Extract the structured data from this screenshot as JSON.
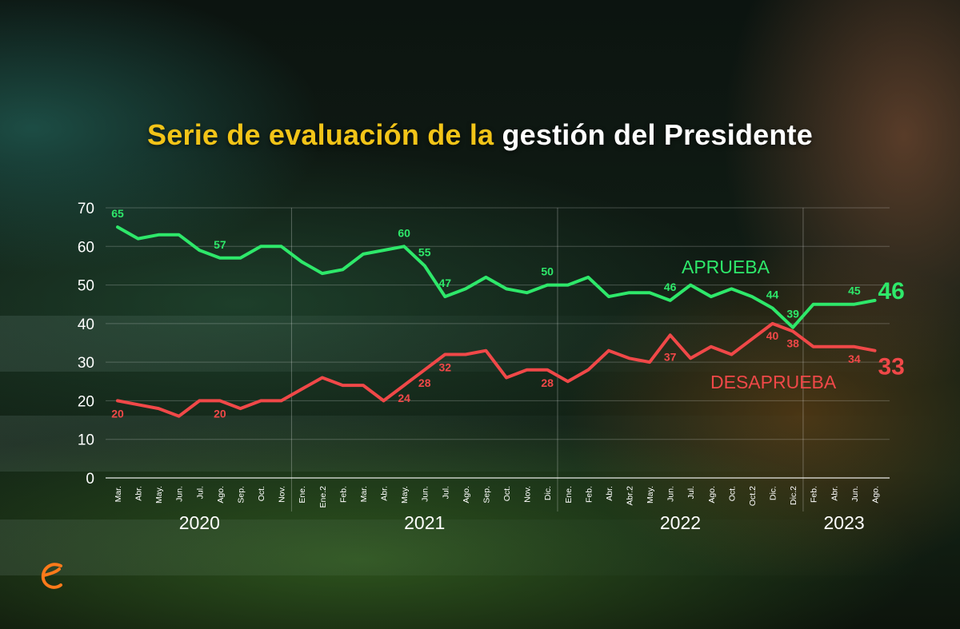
{
  "title": {
    "part1": "Serie de evaluación de la",
    "part2": "gestión del Presidente"
  },
  "colors": {
    "approve": "#2ee86a",
    "disapprove": "#f04848",
    "title_highlight": "#f2c418",
    "logo": "#ff7a1a"
  },
  "logo_icon": "e-logo-icon",
  "chart_data": {
    "type": "line",
    "title": "Serie de evaluación de la gestión del Presidente",
    "ylim": [
      0,
      70
    ],
    "yticks": [
      0,
      10,
      20,
      30,
      40,
      50,
      60,
      70
    ],
    "grid": true,
    "categories": [
      "Mar.",
      "Abr.",
      "May.",
      "Jun.",
      "Jul.",
      "Ago.",
      "Sep.",
      "Oct.",
      "Nov.",
      "Ene.",
      "Ene.2",
      "Feb.",
      "Mar.",
      "Abr.",
      "May.",
      "Jun.",
      "Jul.",
      "Ago.",
      "Sep.",
      "Oct.",
      "Nov.",
      "Dic.",
      "Ene.",
      "Feb.",
      "Abr.",
      "Abr.2",
      "May.",
      "Jun.",
      "Jul.",
      "Ago.",
      "Oct.",
      "Oct.2",
      "Dic.",
      "Dic.2",
      "Feb.",
      "Abr.",
      "Jun.",
      "Ago."
    ],
    "years": [
      {
        "label": "2020",
        "from": 0,
        "to": 8
      },
      {
        "label": "2021",
        "from": 9,
        "to": 21
      },
      {
        "label": "2022",
        "from": 22,
        "to": 33
      },
      {
        "label": "2023",
        "from": 34,
        "to": 37
      }
    ],
    "series": [
      {
        "name": "APRUEBA",
        "values": [
          65,
          62,
          63,
          63,
          59,
          57,
          57,
          60,
          60,
          56,
          53,
          54,
          58,
          59,
          60,
          55,
          47,
          49,
          52,
          49,
          48,
          50,
          50,
          52,
          47,
          48,
          48,
          46,
          50,
          47,
          49,
          47,
          44,
          39,
          45,
          45,
          45,
          46
        ],
        "labels": [
          {
            "index": 0,
            "text": "65"
          },
          {
            "index": 5,
            "text": "57"
          },
          {
            "index": 14,
            "text": "60"
          },
          {
            "index": 15,
            "text": "55"
          },
          {
            "index": 16,
            "text": "47"
          },
          {
            "index": 21,
            "text": "50"
          },
          {
            "index": 27,
            "text": "46"
          },
          {
            "index": 32,
            "text": "44"
          },
          {
            "index": 33,
            "text": "39"
          },
          {
            "index": 36,
            "text": "45"
          },
          {
            "index": 37,
            "text": "46",
            "big": true
          }
        ]
      },
      {
        "name": "DESAPRUEBA",
        "values": [
          20,
          19,
          18,
          16,
          20,
          20,
          18,
          20,
          20,
          23,
          26,
          24,
          24,
          20,
          24,
          28,
          32,
          32,
          33,
          26,
          28,
          28,
          25,
          28,
          33,
          31,
          30,
          37,
          31,
          34,
          32,
          36,
          40,
          38,
          34,
          34,
          34,
          33
        ],
        "labels": [
          {
            "index": 0,
            "text": "20"
          },
          {
            "index": 5,
            "text": "20"
          },
          {
            "index": 14,
            "text": "24"
          },
          {
            "index": 15,
            "text": "28"
          },
          {
            "index": 16,
            "text": "32"
          },
          {
            "index": 21,
            "text": "28"
          },
          {
            "index": 27,
            "text": "37"
          },
          {
            "index": 32,
            "text": "40"
          },
          {
            "index": 33,
            "text": "38"
          },
          {
            "index": 36,
            "text": "34"
          },
          {
            "index": 37,
            "text": "33",
            "big": true
          }
        ]
      }
    ]
  }
}
